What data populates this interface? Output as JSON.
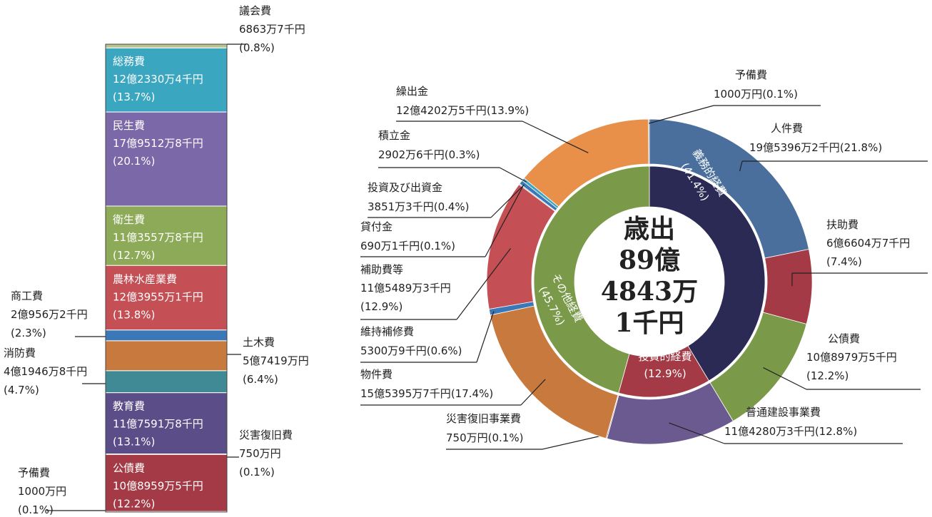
{
  "chart_data": [
    {
      "type": "stacked_bar",
      "categories": [
        "議会費",
        "総務費",
        "民生費",
        "衛生費",
        "農林水産業費",
        "商工費",
        "土木費",
        "消防費",
        "教育費",
        "災害復旧費",
        "公債費",
        "予備費"
      ],
      "amounts": [
        "6863万7千円",
        "12億2330万4千円",
        "17億9512万8千円",
        "11億3557万8千円",
        "12億3955万1千円",
        "2億956万2千円",
        "5億7419万円",
        "4億1946万8千円",
        "11億7591万8千円",
        "750万円",
        "10億8959万5千円",
        "1000万円"
      ],
      "values": [
        0.8,
        13.7,
        20.1,
        12.7,
        13.8,
        2.3,
        6.4,
        4.7,
        13.1,
        0.1,
        12.2,
        0.1
      ],
      "value_labels": [
        "(0.8%)",
        "(13.7%)",
        "(20.1%)",
        "(12.7%)",
        "(13.8%)",
        "(2.3%)",
        "(6.4%)",
        "(4.7%)",
        "(13.1%)",
        "(0.1%)",
        "(12.2%)",
        "(0.1%)"
      ],
      "colors": [
        "#b8c48c",
        "#3aa6c0",
        "#7b68a8",
        "#8daa58",
        "#c44f55",
        "#3b78b8",
        "#c87a3e",
        "#3f8a95",
        "#5a4d88",
        "#8a8a8a",
        "#a33a45",
        "#8a8a8a"
      ]
    },
    {
      "type": "donut",
      "categories": [
        "人件費",
        "扶助費",
        "公債費",
        "普通建設事業費",
        "災害復旧事業費",
        "物件費",
        "維持補修費",
        "補助費等",
        "貸付金",
        "投資及び出資金",
        "積立金",
        "繰出金",
        "予備費"
      ],
      "amounts": [
        "19億5396万2千円",
        "6億6604万7千円",
        "10億8979万5千円",
        "11億4280万3千円",
        "750万円",
        "15億5395万7千円",
        "5300万9千円",
        "11億5489万3千円",
        "690万1千円",
        "3851万3千円",
        "2902万6千円",
        "12億4202万5千円",
        "1000万円"
      ],
      "values": [
        21.8,
        7.4,
        12.2,
        12.8,
        0.1,
        17.4,
        0.6,
        12.9,
        0.1,
        0.4,
        0.3,
        13.9,
        0.1
      ],
      "value_labels": [
        "(21.8%)",
        "(7.4%)",
        "(12.2%)",
        "(12.8%)",
        "(0.1%)",
        "(17.4%)",
        "(0.6%)",
        "(12.9%)",
        "(0.1%)",
        "(0.4%)",
        "(0.3%)",
        "(13.9%)",
        "(0.1%)"
      ],
      "colors": [
        "#4a6f9c",
        "#a33a45",
        "#7a9a4a",
        "#6a5a90",
        "#8a8a8a",
        "#c87a3e",
        "#3b78b8",
        "#c44f55",
        "#9a9a9a",
        "#3b78b8",
        "#3aa6c0",
        "#e8904a",
        "#8a8a8a"
      ],
      "inner_categories": [
        "義務的経費",
        "投資的経費",
        "その他経費"
      ],
      "inner_values": [
        41.4,
        12.9,
        45.7
      ],
      "inner_value_labels": [
        "(41.4%)",
        "(12.9%)",
        "(45.7%)"
      ],
      "inner_colors": [
        "#2a2a55",
        "#a33a45",
        "#7a9a4a"
      ],
      "center_label": [
        "歳出",
        "89億",
        "4843万",
        "1千円"
      ]
    }
  ]
}
